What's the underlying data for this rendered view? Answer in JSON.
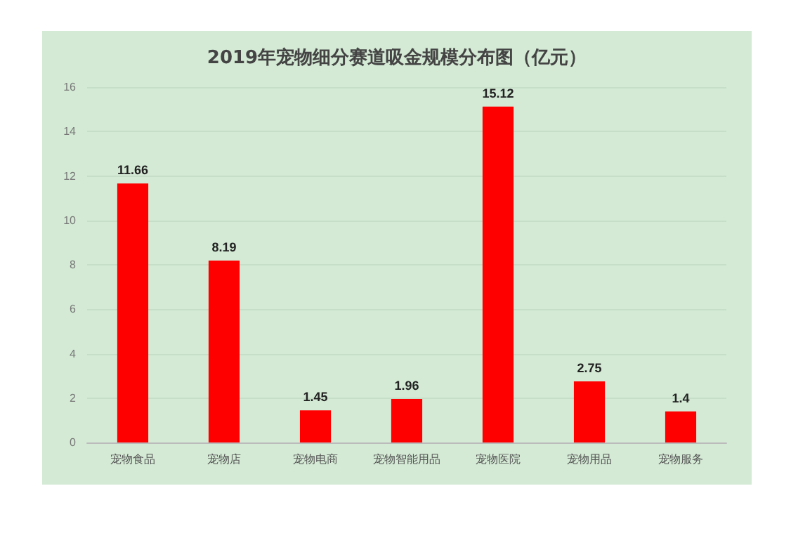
{
  "chart_data": {
    "type": "bar",
    "title": "2019年宠物细分赛道吸金规模分布图（亿元）",
    "categories": [
      "宠物食品",
      "宠物店",
      "宠物电商",
      "宠物智能用品",
      "宠物医院",
      "宠物用品",
      "宠物服务"
    ],
    "values": [
      11.66,
      8.19,
      1.45,
      1.96,
      15.12,
      2.75,
      1.4
    ],
    "color": "#ff0000",
    "ylim": [
      0,
      16
    ],
    "yticks": [
      0,
      2,
      4,
      6,
      8,
      10,
      12,
      14,
      16
    ],
    "grid": "y",
    "data_labels": true
  }
}
